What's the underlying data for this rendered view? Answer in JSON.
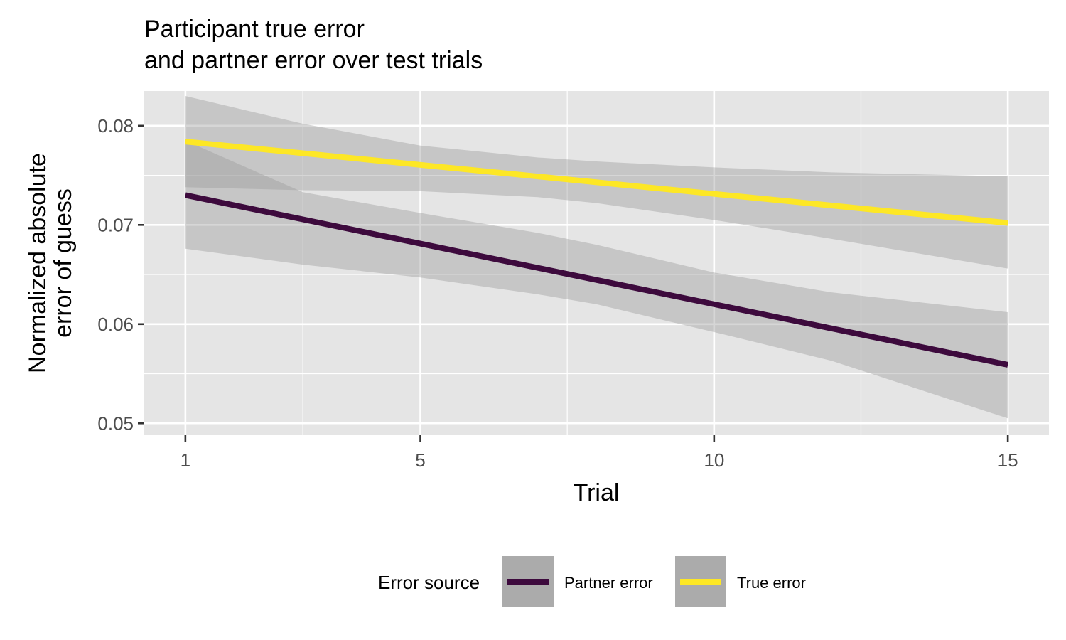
{
  "chart_data": {
    "type": "line",
    "title_lines": [
      "Participant true error",
      "and partner error over test trials"
    ],
    "xlabel": "Trial",
    "ylabel_lines": [
      "Normalized absolute",
      "error of guess"
    ],
    "xlim": [
      0.3,
      15.7
    ],
    "ylim": [
      0.0488,
      0.0835
    ],
    "x_ticks": [
      1,
      5,
      10,
      15
    ],
    "x_tick_labels": [
      "1",
      "5",
      "10",
      "15"
    ],
    "x_minor_ticks": [
      3,
      7.5,
      12.5
    ],
    "y_ticks": [
      0.05,
      0.06,
      0.07,
      0.08
    ],
    "y_tick_labels": [
      "0.05",
      "0.06",
      "0.07",
      "0.08"
    ],
    "y_minor_ticks": [
      0.055,
      0.065,
      0.075
    ],
    "grid": true,
    "legend": {
      "title": "Error source",
      "position": "bottom"
    },
    "series": [
      {
        "name": "Partner error",
        "color": "#3d0a3d",
        "x": [
          1,
          15
        ],
        "y": [
          0.073,
          0.0559
        ],
        "band": {
          "x": [
            1,
            3,
            5,
            7,
            8,
            10,
            12,
            15
          ],
          "upper": [
            0.0785,
            0.0733,
            0.0712,
            0.0692,
            0.068,
            0.0652,
            0.0632,
            0.0612
          ],
          "lower": [
            0.0676,
            0.066,
            0.0647,
            0.063,
            0.062,
            0.0592,
            0.0563,
            0.0505
          ]
        }
      },
      {
        "name": "True error",
        "color": "#fde725",
        "x": [
          1,
          15
        ],
        "y": [
          0.0784,
          0.0702
        ],
        "band": {
          "x": [
            1,
            3,
            5,
            7,
            8,
            10,
            12,
            15
          ],
          "upper": [
            0.083,
            0.0802,
            0.078,
            0.0768,
            0.0764,
            0.0758,
            0.0753,
            0.0749
          ],
          "lower": [
            0.0738,
            0.0735,
            0.0734,
            0.0728,
            0.0722,
            0.0705,
            0.0686,
            0.0656
          ]
        }
      }
    ]
  },
  "colors": {
    "panel_background": "#e5e5e5",
    "grid_major": "#ffffff",
    "confidence_band": "#999999",
    "legend_key_background": "#ababab"
  }
}
